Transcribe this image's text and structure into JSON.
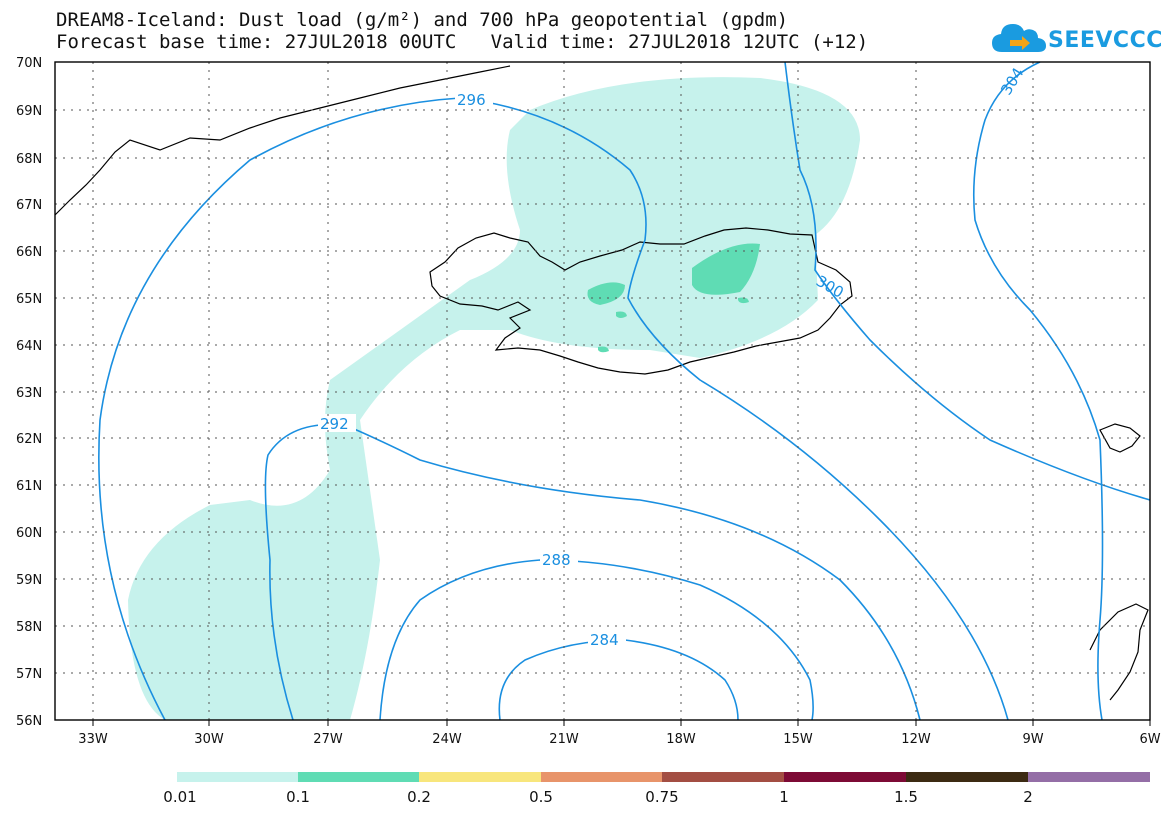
{
  "header": {
    "title_line_1": "DREAM8-Iceland: Dust load (g/m²) and 700 hPa geopotential (gpdm)",
    "title_line_2": "Forecast base time: 27JUL2018 00UTC   Valid time: 27JUL2018 12UTC (+12)"
  },
  "logo": {
    "text": "SEEVCCC",
    "icon": "cloud-logo-icon",
    "color": "#1a9be0"
  },
  "axes": {
    "lat_labels": [
      "70N",
      "69N",
      "68N",
      "67N",
      "66N",
      "65N",
      "64N",
      "63N",
      "62N",
      "61N",
      "60N",
      "59N",
      "58N",
      "57N",
      "56N"
    ],
    "lon_labels": [
      "33W",
      "30W",
      "27W",
      "24W",
      "21W",
      "18W",
      "15W",
      "12W",
      "9W",
      "6W"
    ]
  },
  "contour_labels": [
    "296",
    "292",
    "288",
    "284",
    "304",
    "300"
  ],
  "colorbar": {
    "colors": [
      "#c6f2ec",
      "#5fdcb4",
      "#f8e67c",
      "#e8946a",
      "#a34e43",
      "#7d0a35",
      "#3c2a12",
      "#946ea6"
    ],
    "labels": [
      "0.01",
      "0.1",
      "0.2",
      "0.5",
      "0.75",
      "1",
      "1.5",
      "2"
    ]
  },
  "colors": {
    "contour": "#1a8fe0",
    "dust_low": "#c6f2ec",
    "dust_mid": "#5fdcb4"
  }
}
